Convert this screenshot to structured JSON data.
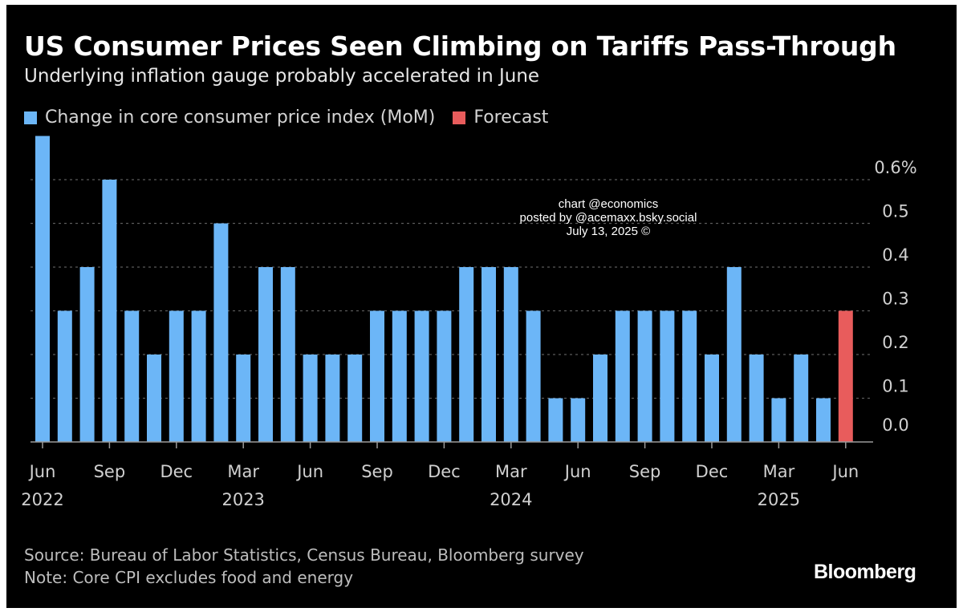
{
  "colors": {
    "background": "#000000",
    "actual": "#6cb6f7",
    "forecast": "#e85c5c",
    "grid": "#5a5a5a",
    "axis_text": "#d0d0d0"
  },
  "header": {
    "title": "US Consumer Prices Seen Climbing on Tariffs Pass-Through",
    "subtitle": "Underlying inflation gauge probably accelerated in June"
  },
  "legend": {
    "actual_label": "Change in core consumer price index (MoM)",
    "forecast_label": "Forecast"
  },
  "watermark": {
    "line1": "chart @economics",
    "line2": "posted by @acemaxx.bsky.social",
    "line3": "July 13, 2025 ©"
  },
  "footer": {
    "source": "Source: Bureau of Labor Statistics, Census Bureau, Bloomberg survey",
    "note": "Note: Core CPI excludes food and energy",
    "brand": "Bloomberg"
  },
  "chart_data": {
    "type": "bar",
    "title": "US Consumer Prices Seen Climbing on Tariffs Pass-Through",
    "subtitle": "Underlying inflation gauge probably accelerated in June",
    "ylabel": "Change in core consumer price index (MoM), %",
    "ylim": [
      0,
      0.7
    ],
    "y_ticks": [
      {
        "value": 0.6,
        "label": "0.6%"
      },
      {
        "value": 0.5,
        "label": "0.5"
      },
      {
        "value": 0.4,
        "label": "0.4"
      },
      {
        "value": 0.3,
        "label": "0.3"
      },
      {
        "value": 0.2,
        "label": "0.2"
      },
      {
        "value": 0.1,
        "label": "0.1"
      },
      {
        "value": 0.0,
        "label": "0.0"
      }
    ],
    "y_axis_side": "right",
    "grid": true,
    "categories": [
      "Jun 2022",
      "Jul 2022",
      "Aug 2022",
      "Sep 2022",
      "Oct 2022",
      "Nov 2022",
      "Dec 2022",
      "Jan 2023",
      "Feb 2023",
      "Mar 2023",
      "Apr 2023",
      "May 2023",
      "Jun 2023",
      "Jul 2023",
      "Aug 2023",
      "Sep 2023",
      "Oct 2023",
      "Nov 2023",
      "Dec 2023",
      "Jan 2024",
      "Feb 2024",
      "Mar 2024",
      "Apr 2024",
      "May 2024",
      "Jun 2024",
      "Jul 2024",
      "Aug 2024",
      "Sep 2024",
      "Oct 2024",
      "Nov 2024",
      "Dec 2024",
      "Jan 2025",
      "Feb 2025",
      "Mar 2025",
      "Apr 2025",
      "May 2025",
      "Jun 2025"
    ],
    "series": [
      {
        "name": "Change in core consumer price index (MoM)",
        "values": [
          0.7,
          0.3,
          0.4,
          0.6,
          0.3,
          0.2,
          0.3,
          0.3,
          0.5,
          0.2,
          0.4,
          0.4,
          0.2,
          0.2,
          0.2,
          0.3,
          0.3,
          0.3,
          0.3,
          0.4,
          0.4,
          0.4,
          0.3,
          0.1,
          0.1,
          0.2,
          0.3,
          0.3,
          0.3,
          0.3,
          0.2,
          0.4,
          0.2,
          0.1,
          0.2,
          0.1,
          null
        ]
      },
      {
        "name": "Forecast",
        "values": [
          null,
          null,
          null,
          null,
          null,
          null,
          null,
          null,
          null,
          null,
          null,
          null,
          null,
          null,
          null,
          null,
          null,
          null,
          null,
          null,
          null,
          null,
          null,
          null,
          null,
          null,
          null,
          null,
          null,
          null,
          null,
          null,
          null,
          null,
          null,
          null,
          0.3
        ]
      }
    ],
    "x_tick_labels": [
      {
        "index": 0,
        "month": "Jun",
        "year": "2022"
      },
      {
        "index": 3,
        "month": "Sep",
        "year": ""
      },
      {
        "index": 6,
        "month": "Dec",
        "year": ""
      },
      {
        "index": 9,
        "month": "Mar",
        "year": "2023"
      },
      {
        "index": 12,
        "month": "Jun",
        "year": ""
      },
      {
        "index": 15,
        "month": "Sep",
        "year": ""
      },
      {
        "index": 18,
        "month": "Dec",
        "year": ""
      },
      {
        "index": 21,
        "month": "Mar",
        "year": "2024"
      },
      {
        "index": 24,
        "month": "Jun",
        "year": ""
      },
      {
        "index": 27,
        "month": "Sep",
        "year": ""
      },
      {
        "index": 30,
        "month": "Dec",
        "year": ""
      },
      {
        "index": 33,
        "month": "Mar",
        "year": "2025"
      },
      {
        "index": 36,
        "month": "Jun",
        "year": ""
      }
    ],
    "legend_position": "top-left"
  }
}
